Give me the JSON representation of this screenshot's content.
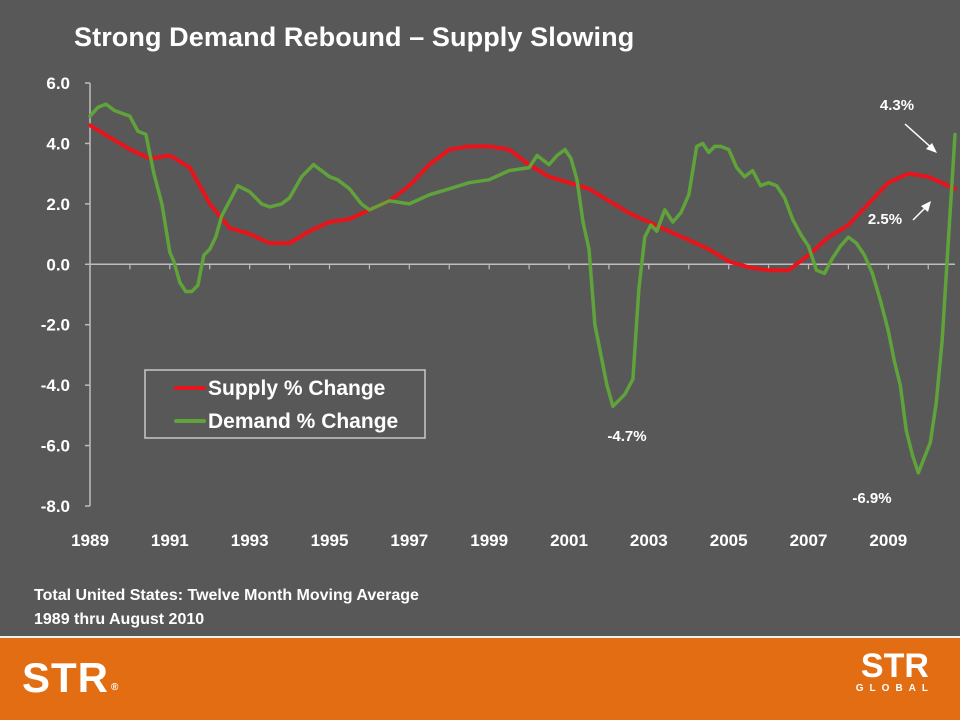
{
  "title": "Strong Demand Rebound – Supply Slowing",
  "note": {
    "line1": "Total United States: Twelve Month Moving Average",
    "line2": "1989 thru August 2010"
  },
  "footer": {
    "logo_left": "STR",
    "logo_left_mark": "®",
    "logo_right": "STR",
    "logo_right_sub": "GLOBAL"
  },
  "colors": {
    "background": "#585858",
    "supply": "#e8141b",
    "demand": "#5fa33a",
    "footer": "#e36d12"
  },
  "chart_data": {
    "type": "line",
    "title": "Strong Demand Rebound – Supply Slowing",
    "xlabel": "",
    "ylabel": "",
    "xlim": [
      1989.0,
      2010.67
    ],
    "ylim": [
      -8.0,
      6.0
    ],
    "x_ticks": [
      "1989",
      "1991",
      "1993",
      "1995",
      "1997",
      "1999",
      "2001",
      "2003",
      "2005",
      "2007",
      "2009"
    ],
    "y_ticks": [
      "6.0",
      "4.0",
      "2.0",
      "0.0",
      "-2.0",
      "-4.0",
      "-6.0",
      "-8.0"
    ],
    "grid": false,
    "legend": "lower-left",
    "series": [
      {
        "name": "Supply % Change",
        "color": "#e8141b",
        "x": [
          1989.0,
          1989.5,
          1990.0,
          1990.5,
          1991.0,
          1991.5,
          1992.0,
          1992.5,
          1993.0,
          1993.5,
          1994.0,
          1994.5,
          1995.0,
          1995.5,
          1996.0,
          1996.5,
          1997.0,
          1997.5,
          1998.0,
          1998.5,
          1999.0,
          1999.5,
          2000.0,
          2000.5,
          2001.0,
          2001.5,
          2002.0,
          2002.5,
          2003.0,
          2003.5,
          2004.0,
          2004.5,
          2005.0,
          2005.5,
          2006.0,
          2006.5,
          2007.0,
          2007.5,
          2008.0,
          2008.5,
          2009.0,
          2009.5,
          2010.0,
          2010.67
        ],
        "values": [
          4.6,
          4.2,
          3.8,
          3.5,
          3.6,
          3.2,
          2.0,
          1.2,
          1.0,
          0.7,
          0.7,
          1.1,
          1.4,
          1.5,
          1.8,
          2.1,
          2.6,
          3.3,
          3.8,
          3.9,
          3.9,
          3.8,
          3.3,
          2.9,
          2.7,
          2.5,
          2.1,
          1.7,
          1.4,
          1.1,
          0.8,
          0.5,
          0.1,
          -0.1,
          -0.2,
          -0.2,
          0.3,
          0.9,
          1.3,
          2.0,
          2.7,
          3.0,
          2.9,
          2.5
        ]
      },
      {
        "name": "Demand % Change",
        "color": "#5fa33a",
        "x": [
          1989.0,
          1989.2,
          1989.4,
          1989.6,
          1989.8,
          1990.0,
          1990.2,
          1990.4,
          1990.6,
          1990.8,
          1991.0,
          1991.1,
          1991.25,
          1991.4,
          1991.55,
          1991.7,
          1991.85,
          1992.0,
          1992.15,
          1992.3,
          1992.5,
          1992.7,
          1993.0,
          1993.3,
          1993.5,
          1993.8,
          1994.0,
          1994.3,
          1994.6,
          1995.0,
          1995.2,
          1995.5,
          1995.8,
          1996.0,
          1996.5,
          1997.0,
          1997.5,
          1998.0,
          1998.5,
          1999.0,
          1999.5,
          2000.0,
          2000.2,
          2000.5,
          2000.7,
          2000.9,
          2001.05,
          2001.2,
          2001.35,
          2001.5,
          2001.65,
          2001.8,
          2001.95,
          2002.1,
          2002.25,
          2002.4,
          2002.6,
          2002.75,
          2002.9,
          2003.05,
          2003.2,
          2003.4,
          2003.6,
          2003.8,
          2004.0,
          2004.2,
          2004.35,
          2004.5,
          2004.65,
          2004.8,
          2005.0,
          2005.2,
          2005.4,
          2005.6,
          2005.8,
          2006.0,
          2006.2,
          2006.4,
          2006.6,
          2006.8,
          2007.0,
          2007.2,
          2007.4,
          2007.6,
          2007.8,
          2008.0,
          2008.2,
          2008.4,
          2008.6,
          2008.8,
          2009.0,
          2009.15,
          2009.3,
          2009.45,
          2009.6,
          2009.75,
          2009.9,
          2010.05,
          2010.2,
          2010.35,
          2010.5,
          2010.67
        ],
        "values": [
          4.9,
          5.2,
          5.3,
          5.1,
          5.0,
          4.9,
          4.4,
          4.3,
          3.0,
          2.0,
          0.4,
          0.1,
          -0.6,
          -0.9,
          -0.9,
          -0.7,
          0.3,
          0.5,
          0.9,
          1.6,
          2.1,
          2.6,
          2.4,
          2.0,
          1.9,
          2.0,
          2.2,
          2.9,
          3.3,
          2.9,
          2.8,
          2.5,
          2.0,
          1.8,
          2.1,
          2.0,
          2.3,
          2.5,
          2.7,
          2.8,
          3.1,
          3.2,
          3.6,
          3.3,
          3.6,
          3.8,
          3.5,
          2.8,
          1.4,
          0.5,
          -2.0,
          -3.0,
          -4.0,
          -4.7,
          -4.5,
          -4.3,
          -3.8,
          -0.8,
          0.9,
          1.3,
          1.1,
          1.8,
          1.4,
          1.7,
          2.3,
          3.9,
          4.0,
          3.7,
          3.9,
          3.9,
          3.8,
          3.2,
          2.9,
          3.1,
          2.6,
          2.7,
          2.6,
          2.2,
          1.5,
          1.0,
          0.6,
          -0.2,
          -0.3,
          0.2,
          0.6,
          0.9,
          0.7,
          0.3,
          -0.3,
          -1.2,
          -2.2,
          -3.2,
          -4.0,
          -5.5,
          -6.3,
          -6.9,
          -6.4,
          -5.9,
          -4.6,
          -2.5,
          0.7,
          4.3
        ]
      }
    ],
    "annotations": [
      {
        "text": "4.3%",
        "x": 2010.67,
        "y": 4.3
      },
      {
        "text": "2.5%",
        "x": 2010.67,
        "y": 2.5
      },
      {
        "text": "-4.7%",
        "x": 2002.1,
        "y": -4.7
      },
      {
        "text": "-6.9%",
        "x": 2009.75,
        "y": -6.9
      }
    ]
  }
}
